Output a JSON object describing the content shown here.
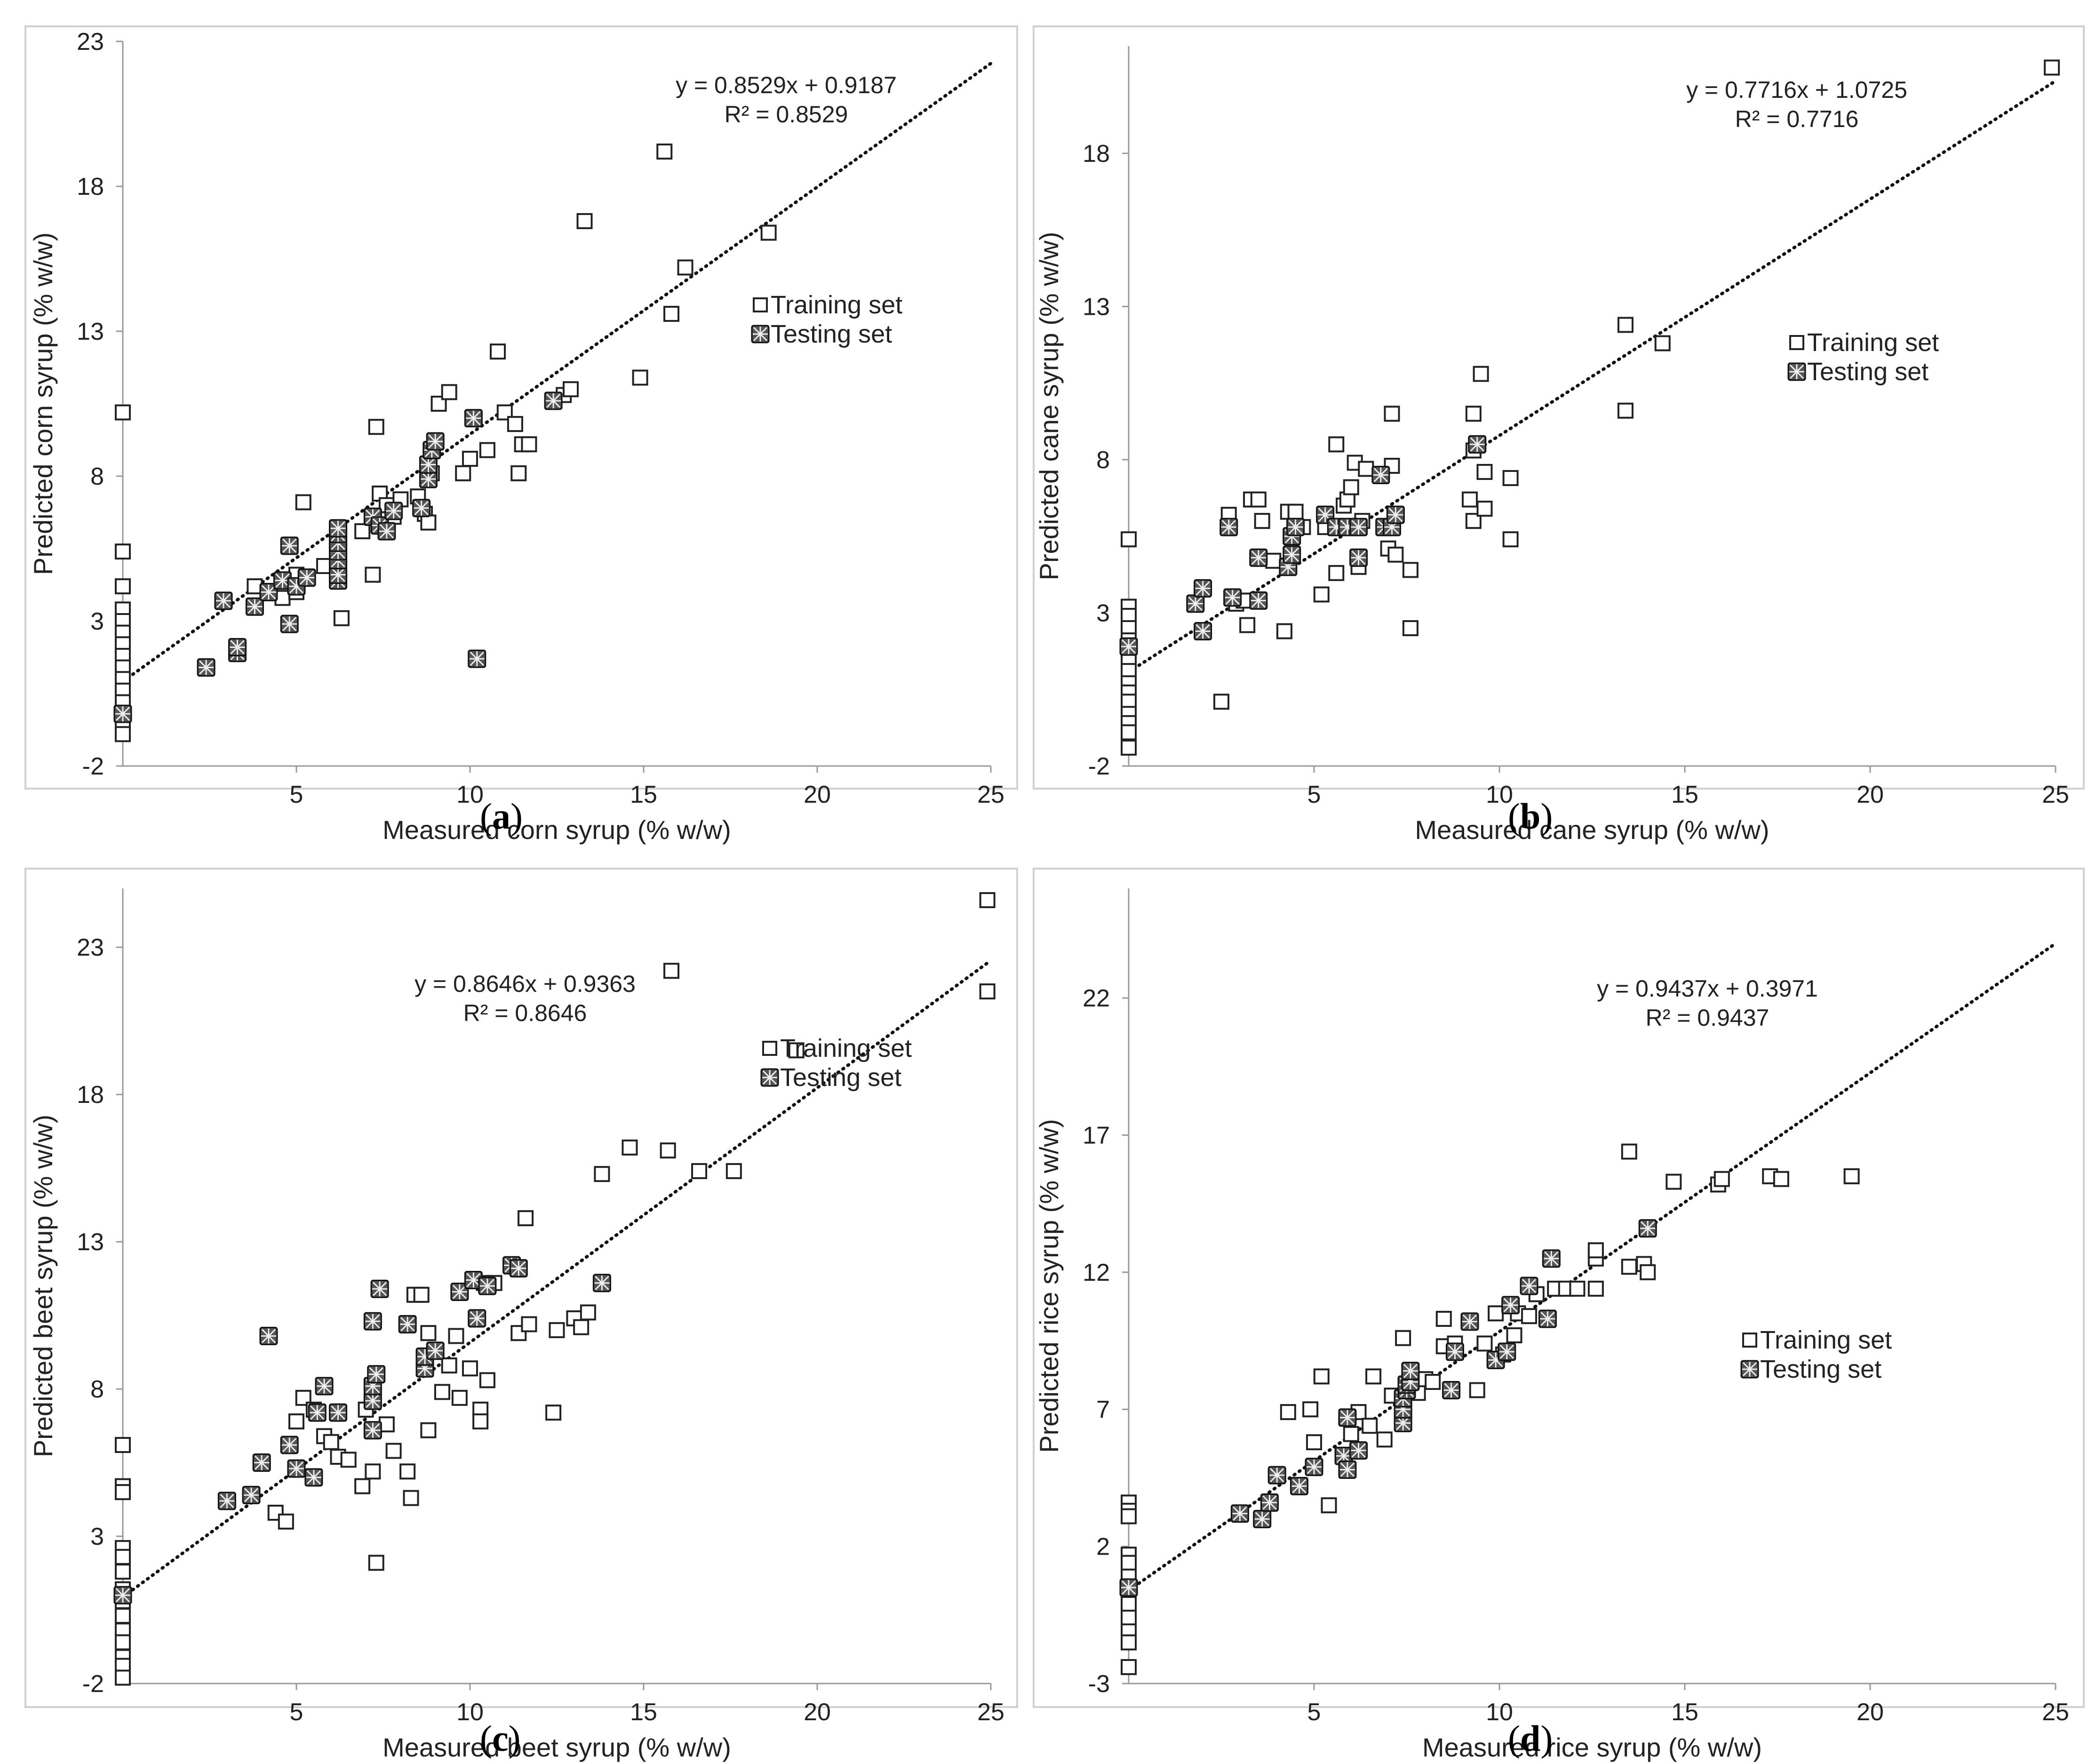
{
  "chart_data": [
    {
      "type": "scatter",
      "panel": "a",
      "caption": "a",
      "xlabel": "Measured corn syrup (% w/w)",
      "ylabel": "Predicted corn syrup (% w/w)",
      "xlim": [
        0,
        25
      ],
      "ylim": [
        -2,
        23
      ],
      "xticks": [
        5,
        10,
        15,
        20,
        25
      ],
      "yticks": [
        -2,
        3,
        8,
        13,
        18,
        23
      ],
      "equation": "y = 0.8529x + 0.9187",
      "r2": "R² = 0.8529",
      "fit": {
        "slope": 0.8529,
        "intercept": 0.9187
      },
      "legend": {
        "training": "Training set",
        "testing": "Testing set"
      },
      "training": [
        [
          0,
          10.2
        ],
        [
          0,
          5.4
        ],
        [
          0,
          4.2
        ],
        [
          0,
          3.4
        ],
        [
          0,
          3.0
        ],
        [
          0,
          2.6
        ],
        [
          0,
          2.2
        ],
        [
          0,
          1.8
        ],
        [
          0,
          1.4
        ],
        [
          0,
          1.0
        ],
        [
          0,
          0.6
        ],
        [
          0,
          0.2
        ],
        [
          0,
          -0.2
        ],
        [
          0,
          -0.6
        ],
        [
          0,
          -0.9
        ],
        [
          3.8,
          4.2
        ],
        [
          4.2,
          4.0
        ],
        [
          4.6,
          3.8
        ],
        [
          5.0,
          4.6
        ],
        [
          5.2,
          7.1
        ],
        [
          5.0,
          4.0
        ],
        [
          5.8,
          4.9
        ],
        [
          6.3,
          3.1
        ],
        [
          6.9,
          6.1
        ],
        [
          7.2,
          4.6
        ],
        [
          7.3,
          9.7
        ],
        [
          7.4,
          7.4
        ],
        [
          7.6,
          7.0
        ],
        [
          7.8,
          6.6
        ],
        [
          8.0,
          7.2
        ],
        [
          8.5,
          7.3
        ],
        [
          8.7,
          6.7
        ],
        [
          8.8,
          6.4
        ],
        [
          8.9,
          8.1
        ],
        [
          9.1,
          10.5
        ],
        [
          9.4,
          10.9
        ],
        [
          9.8,
          8.1
        ],
        [
          10.0,
          8.6
        ],
        [
          10.5,
          8.9
        ],
        [
          10.8,
          12.3
        ],
        [
          11.0,
          10.2
        ],
        [
          11.3,
          9.8
        ],
        [
          11.4,
          8.1
        ],
        [
          11.5,
          9.1
        ],
        [
          11.7,
          9.1
        ],
        [
          12.7,
          10.8
        ],
        [
          12.9,
          11.0
        ],
        [
          13.3,
          16.8
        ],
        [
          14.9,
          11.4
        ],
        [
          15.6,
          19.2
        ],
        [
          15.8,
          13.6
        ],
        [
          16.2,
          15.2
        ],
        [
          18.6,
          16.4
        ]
      ],
      "testing": [
        [
          0,
          -0.2
        ],
        [
          2.4,
          1.4
        ],
        [
          2.9,
          3.7
        ],
        [
          3.3,
          1.9
        ],
        [
          3.3,
          2.1
        ],
        [
          3.8,
          3.5
        ],
        [
          4.2,
          4.0
        ],
        [
          4.6,
          4.4
        ],
        [
          4.8,
          2.9
        ],
        [
          4.8,
          5.6
        ],
        [
          5.0,
          4.2
        ],
        [
          5.3,
          4.5
        ],
        [
          6.2,
          4.4
        ],
        [
          6.2,
          4.6
        ],
        [
          6.2,
          5.1
        ],
        [
          6.2,
          5.4
        ],
        [
          6.2,
          5.7
        ],
        [
          6.2,
          6.0
        ],
        [
          6.2,
          6.2
        ],
        [
          7.2,
          6.6
        ],
        [
          7.4,
          6.3
        ],
        [
          7.6,
          6.1
        ],
        [
          7.8,
          6.8
        ],
        [
          8.6,
          6.9
        ],
        [
          8.8,
          7.9
        ],
        [
          8.8,
          8.4
        ],
        [
          8.9,
          8.9
        ],
        [
          9.0,
          9.2
        ],
        [
          10.1,
          10.0
        ],
        [
          10.2,
          1.7
        ],
        [
          12.4,
          10.6
        ]
      ]
    },
    {
      "type": "scatter",
      "panel": "b",
      "caption": "b",
      "xlabel": "Measured cane syrup (% w/w)",
      "ylabel": "Predicted cane syrup (% w/w)",
      "xlim": [
        0,
        25
      ],
      "ylim": [
        -2,
        21.5
      ],
      "xticks": [
        5,
        10,
        15,
        20,
        25
      ],
      "yticks": [
        -2,
        3,
        8,
        13,
        18
      ],
      "equation": "y = 0.7716x + 1.0725",
      "r2": "R² = 0.7716",
      "fit": {
        "slope": 0.7716,
        "intercept": 1.0725
      },
      "legend": {
        "training": "Training set",
        "testing": "Testing set"
      },
      "training": [
        [
          0,
          5.4
        ],
        [
          0,
          3.2
        ],
        [
          0,
          2.9
        ],
        [
          0,
          2.5
        ],
        [
          0,
          2.1
        ],
        [
          0,
          1.8
        ],
        [
          0,
          1.4
        ],
        [
          0,
          1.1
        ],
        [
          0,
          0.7
        ],
        [
          0,
          0.4
        ],
        [
          0,
          0.1
        ],
        [
          0,
          -0.3
        ],
        [
          0,
          -0.6
        ],
        [
          0,
          -0.9
        ],
        [
          0,
          -1.4
        ],
        [
          2.5,
          0.1
        ],
        [
          2.7,
          6.2
        ],
        [
          2.9,
          3.3
        ],
        [
          3.1,
          3.4
        ],
        [
          3.2,
          2.6
        ],
        [
          3.3,
          6.7
        ],
        [
          3.5,
          6.7
        ],
        [
          3.6,
          6.0
        ],
        [
          3.9,
          4.7
        ],
        [
          4.2,
          2.4
        ],
        [
          4.3,
          6.3
        ],
        [
          4.5,
          6.3
        ],
        [
          4.7,
          5.8
        ],
        [
          5.2,
          3.6
        ],
        [
          5.3,
          5.8
        ],
        [
          5.6,
          8.5
        ],
        [
          5.6,
          4.3
        ],
        [
          5.8,
          6.5
        ],
        [
          5.9,
          6.7
        ],
        [
          6.0,
          7.1
        ],
        [
          6.1,
          7.9
        ],
        [
          6.2,
          4.5
        ],
        [
          6.3,
          6.0
        ],
        [
          6.4,
          7.7
        ],
        [
          7.0,
          5.1
        ],
        [
          7.1,
          7.8
        ],
        [
          7.1,
          9.5
        ],
        [
          7.2,
          4.9
        ],
        [
          7.6,
          2.5
        ],
        [
          7.6,
          4.4
        ],
        [
          9.2,
          6.7
        ],
        [
          9.3,
          8.3
        ],
        [
          9.3,
          6.0
        ],
        [
          9.3,
          9.5
        ],
        [
          9.5,
          10.8
        ],
        [
          9.6,
          6.4
        ],
        [
          9.6,
          7.6
        ],
        [
          10.3,
          7.4
        ],
        [
          10.3,
          5.4
        ],
        [
          13.4,
          12.4
        ],
        [
          13.4,
          9.6
        ],
        [
          14.4,
          11.8
        ],
        [
          24.9,
          20.8
        ]
      ],
      "testing": [
        [
          0,
          1.9
        ],
        [
          1.8,
          3.3
        ],
        [
          2.0,
          3.8
        ],
        [
          2.0,
          2.4
        ],
        [
          2.7,
          5.8
        ],
        [
          2.8,
          3.5
        ],
        [
          3.5,
          4.8
        ],
        [
          3.5,
          3.4
        ],
        [
          4.3,
          4.5
        ],
        [
          4.4,
          4.9
        ],
        [
          4.4,
          5.5
        ],
        [
          4.5,
          5.8
        ],
        [
          5.3,
          6.2
        ],
        [
          5.6,
          5.8
        ],
        [
          5.9,
          5.8
        ],
        [
          6.2,
          5.8
        ],
        [
          6.2,
          4.8
        ],
        [
          6.8,
          7.5
        ],
        [
          6.9,
          5.8
        ],
        [
          7.1,
          5.8
        ],
        [
          7.2,
          6.2
        ],
        [
          9.4,
          8.5
        ]
      ]
    },
    {
      "type": "scatter",
      "panel": "c",
      "caption": "c",
      "xlabel": "Measured beet syrup (% w/w)",
      "ylabel": "Predicted beet syrup (% w/w)",
      "xlim": [
        0,
        25
      ],
      "ylim": [
        -2,
        25
      ],
      "xticks": [
        5,
        10,
        15,
        20,
        25
      ],
      "yticks": [
        -2,
        3,
        8,
        13,
        18,
        23
      ],
      "equation": "y = 0.8646x + 0.9363",
      "r2": "R² = 0.8646",
      "fit": {
        "slope": 0.8646,
        "intercept": 0.9363
      },
      "legend": {
        "training": "Training set",
        "testing": "Testing set"
      },
      "training": [
        [
          0,
          6.1
        ],
        [
          0,
          4.7
        ],
        [
          0,
          4.5
        ],
        [
          0,
          2.6
        ],
        [
          0,
          2.3
        ],
        [
          0,
          1.8
        ],
        [
          0,
          1.2
        ],
        [
          0,
          0.8
        ],
        [
          0,
          0.3
        ],
        [
          0,
          -0.2
        ],
        [
          0,
          -0.6
        ],
        [
          0,
          -1.1
        ],
        [
          0,
          -1.4
        ],
        [
          0,
          -1.8
        ],
        [
          4.4,
          3.8
        ],
        [
          4.7,
          3.5
        ],
        [
          5.0,
          6.9
        ],
        [
          5.2,
          7.7
        ],
        [
          5.5,
          7.3
        ],
        [
          5.8,
          6.4
        ],
        [
          6.0,
          6.2
        ],
        [
          6.2,
          5.7
        ],
        [
          6.5,
          5.6
        ],
        [
          6.9,
          4.7
        ],
        [
          7.0,
          7.3
        ],
        [
          7.2,
          5.2
        ],
        [
          7.3,
          2.1
        ],
        [
          7.6,
          6.8
        ],
        [
          7.8,
          5.9
        ],
        [
          8.2,
          5.2
        ],
        [
          8.3,
          4.3
        ],
        [
          8.4,
          11.2
        ],
        [
          8.6,
          11.2
        ],
        [
          8.8,
          6.6
        ],
        [
          8.8,
          9.9
        ],
        [
          9.2,
          7.9
        ],
        [
          9.4,
          8.8
        ],
        [
          9.6,
          9.8
        ],
        [
          9.7,
          7.7
        ],
        [
          10.0,
          8.7
        ],
        [
          10.3,
          7.3
        ],
        [
          10.3,
          6.9
        ],
        [
          10.4,
          11.6
        ],
        [
          10.5,
          8.3
        ],
        [
          10.7,
          11.6
        ],
        [
          11.4,
          9.9
        ],
        [
          11.6,
          13.8
        ],
        [
          11.7,
          10.2
        ],
        [
          12.4,
          7.2
        ],
        [
          12.5,
          10.0
        ],
        [
          13.0,
          10.4
        ],
        [
          13.2,
          10.1
        ],
        [
          13.4,
          10.6
        ],
        [
          13.8,
          15.3
        ],
        [
          14.6,
          16.2
        ],
        [
          15.7,
          16.1
        ],
        [
          15.8,
          22.2
        ],
        [
          16.6,
          15.4
        ],
        [
          17.6,
          15.4
        ],
        [
          19.4,
          19.5
        ],
        [
          24.9,
          24.6
        ],
        [
          24.9,
          21.5
        ]
      ],
      "testing": [
        [
          0,
          1.0
        ],
        [
          3.0,
          4.2
        ],
        [
          3.7,
          4.4
        ],
        [
          4.0,
          5.5
        ],
        [
          4.2,
          9.8
        ],
        [
          4.8,
          6.1
        ],
        [
          5.0,
          5.3
        ],
        [
          5.5,
          5.0
        ],
        [
          5.6,
          7.2
        ],
        [
          5.8,
          8.1
        ],
        [
          6.2,
          7.2
        ],
        [
          7.2,
          6.6
        ],
        [
          7.2,
          7.6
        ],
        [
          7.2,
          8.1
        ],
        [
          7.3,
          8.5
        ],
        [
          7.2,
          10.3
        ],
        [
          7.4,
          11.4
        ],
        [
          8.2,
          10.2
        ],
        [
          8.7,
          8.7
        ],
        [
          8.7,
          9.1
        ],
        [
          9.0,
          9.3
        ],
        [
          9.7,
          11.3
        ],
        [
          10.1,
          11.7
        ],
        [
          10.2,
          10.4
        ],
        [
          10.5,
          11.5
        ],
        [
          11.2,
          12.2
        ],
        [
          11.4,
          12.1
        ],
        [
          13.8,
          11.6
        ]
      ]
    },
    {
      "type": "scatter",
      "panel": "d",
      "caption": "d",
      "xlabel": "Measured rice syrup (% w/w)",
      "ylabel": "Predicted rice syrup (% w/w)",
      "xlim": [
        0,
        25
      ],
      "ylim": [
        -3,
        26
      ],
      "xticks": [
        5,
        10,
        15,
        20,
        25
      ],
      "yticks": [
        -3,
        2,
        7,
        12,
        17,
        22
      ],
      "equation": "y = 0.9437x + 0.3971",
      "r2": "R² = 0.9437",
      "fit": {
        "slope": 0.9437,
        "intercept": 0.3971
      },
      "legend": {
        "training": "Training set",
        "testing": "Testing set"
      },
      "training": [
        [
          0,
          3.6
        ],
        [
          0,
          3.3
        ],
        [
          0,
          3.1
        ],
        [
          0,
          1.7
        ],
        [
          0,
          1.4
        ],
        [
          0,
          0.9
        ],
        [
          0,
          0.4
        ],
        [
          0,
          -0.1
        ],
        [
          0,
          -0.6
        ],
        [
          0,
          -1.1
        ],
        [
          0,
          -1.5
        ],
        [
          0,
          -2.4
        ],
        [
          4.3,
          6.9
        ],
        [
          4.9,
          7.0
        ],
        [
          5.0,
          5.8
        ],
        [
          5.2,
          8.2
        ],
        [
          5.4,
          3.5
        ],
        [
          6.0,
          6.1
        ],
        [
          6.2,
          6.9
        ],
        [
          6.5,
          6.4
        ],
        [
          6.6,
          8.2
        ],
        [
          6.9,
          5.9
        ],
        [
          7.1,
          7.5
        ],
        [
          7.4,
          9.6
        ],
        [
          7.8,
          7.6
        ],
        [
          8.0,
          8.1
        ],
        [
          8.2,
          8.0
        ],
        [
          8.5,
          9.3
        ],
        [
          8.5,
          10.3
        ],
        [
          8.8,
          9.4
        ],
        [
          9.4,
          7.7
        ],
        [
          9.6,
          9.4
        ],
        [
          9.9,
          10.5
        ],
        [
          10.1,
          9.0
        ],
        [
          10.4,
          9.7
        ],
        [
          10.5,
          10.5
        ],
        [
          10.8,
          10.4
        ],
        [
          11.0,
          11.2
        ],
        [
          11.5,
          11.4
        ],
        [
          11.8,
          11.4
        ],
        [
          12.1,
          11.4
        ],
        [
          12.6,
          11.4
        ],
        [
          12.6,
          12.5
        ],
        [
          12.6,
          12.8
        ],
        [
          13.5,
          16.4
        ],
        [
          13.5,
          12.2
        ],
        [
          13.9,
          12.3
        ],
        [
          14.0,
          12.0
        ],
        [
          14.7,
          15.3
        ],
        [
          15.9,
          15.2
        ],
        [
          16.0,
          15.4
        ],
        [
          17.3,
          15.5
        ],
        [
          17.6,
          15.4
        ],
        [
          19.5,
          15.5
        ]
      ],
      "testing": [
        [
          0,
          0.5
        ],
        [
          3.0,
          3.2
        ],
        [
          3.6,
          3.0
        ],
        [
          3.8,
          3.6
        ],
        [
          4.0,
          4.6
        ],
        [
          4.6,
          4.2
        ],
        [
          5.0,
          4.9
        ],
        [
          5.8,
          5.3
        ],
        [
          5.9,
          4.8
        ],
        [
          5.9,
          6.7
        ],
        [
          6.2,
          5.5
        ],
        [
          7.4,
          6.5
        ],
        [
          7.4,
          7.0
        ],
        [
          7.4,
          7.4
        ],
        [
          7.5,
          7.7
        ],
        [
          7.5,
          7.9
        ],
        [
          7.6,
          8.0
        ],
        [
          7.6,
          8.4
        ],
        [
          8.7,
          7.7
        ],
        [
          8.8,
          9.1
        ],
        [
          9.2,
          10.2
        ],
        [
          9.9,
          8.8
        ],
        [
          10.2,
          9.1
        ],
        [
          10.3,
          10.8
        ],
        [
          10.8,
          11.5
        ],
        [
          11.3,
          10.3
        ],
        [
          11.4,
          12.5
        ],
        [
          14.0,
          13.6
        ]
      ]
    }
  ]
}
